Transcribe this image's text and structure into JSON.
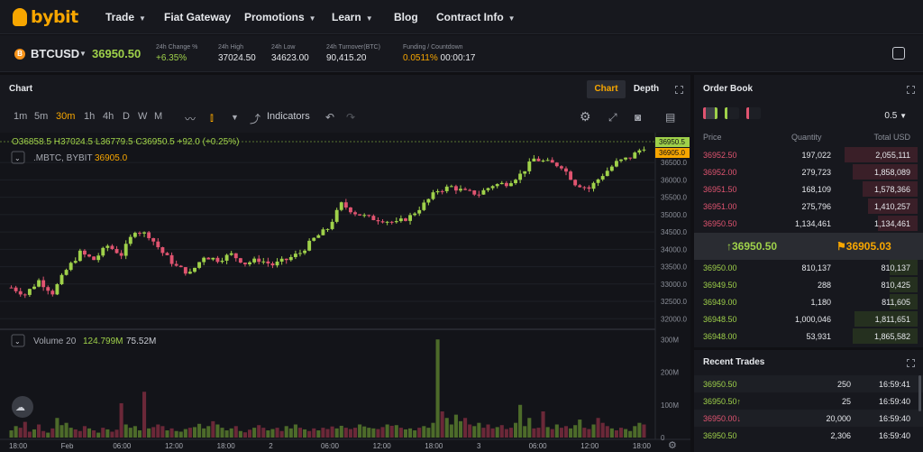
{
  "nav": {
    "logo": "bybit",
    "items": [
      {
        "label": "Trade",
        "caret": true
      },
      {
        "label": "Fiat Gateway",
        "caret": false
      },
      {
        "label": "Promotions",
        "caret": true
      },
      {
        "label": "Learn",
        "caret": true
      },
      {
        "label": "Blog",
        "caret": false
      },
      {
        "label": "Contract Info",
        "caret": true
      }
    ]
  },
  "ticker": {
    "coin_glyph": "B",
    "symbol": "BTCUSD",
    "last_price": "36950.50",
    "stats": [
      {
        "label": "24h Change %",
        "value": "+6.35%",
        "tone": "green"
      },
      {
        "label": "24h High",
        "value": "37024.50",
        "tone": "white"
      },
      {
        "label": "24h Low",
        "value": "34623.00",
        "tone": "white"
      },
      {
        "label": "24h Turnover(BTC)",
        "value": "90,415.20",
        "tone": "white"
      },
      {
        "label": "Funding  / Countdown",
        "value": "0.0511%",
        "value2": "00:00:17",
        "tone": "orange"
      }
    ]
  },
  "chart_panel": {
    "title": "Chart",
    "tab_chart": "Chart",
    "tab_depth": "Depth",
    "timeframes": [
      "1m",
      "5m",
      "30m",
      "1h",
      "4h",
      "D",
      "W",
      "M"
    ],
    "active_timeframe": "30m",
    "indicators_label": "Indicators"
  },
  "chart_data": {
    "type": "candlestick",
    "ohlc_legend": {
      "o": "O36858.5",
      "h": "H37024.5",
      "l": "L36779.5",
      "c": "C36950.5",
      "change": "+92.0 (+0.25%)"
    },
    "series_label": ".MBTC, BYBIT",
    "series_value": "36905.0",
    "volume_label": "Volume 20",
    "volume_v1": "124.799M",
    "volume_v2": "75.52M",
    "price_axis": [
      "36500.0",
      "36000.0",
      "35500.0",
      "35000.0",
      "34500.0",
      "34000.0",
      "33500.0",
      "33000.0",
      "32500.0",
      "32000.0"
    ],
    "price_tags": {
      "last": "36950.5",
      "index": "36905.0"
    },
    "volume_axis": [
      "300M",
      "200M",
      "100M",
      "0"
    ],
    "time_axis": [
      "18:00",
      "Feb",
      "06:00",
      "12:00",
      "18:00",
      "2",
      "06:00",
      "12:00",
      "18:00",
      "3",
      "06:00",
      "12:00",
      "18:00"
    ],
    "ylim": [
      31800,
      37100
    ],
    "price_trend": [
      [
        0,
        32900
      ],
      [
        3,
        32700
      ],
      [
        6,
        33100
      ],
      [
        9,
        32750
      ],
      [
        12,
        33400
      ],
      [
        15,
        33900
      ],
      [
        18,
        33700
      ],
      [
        21,
        34100
      ],
      [
        24,
        33850
      ],
      [
        27,
        34550
      ],
      [
        30,
        34400
      ],
      [
        33,
        33900
      ],
      [
        36,
        33500
      ],
      [
        39,
        33300
      ],
      [
        42,
        33800
      ],
      [
        45,
        33700
      ],
      [
        48,
        33850
      ],
      [
        51,
        33600
      ],
      [
        54,
        33700
      ],
      [
        57,
        33550
      ],
      [
        60,
        33700
      ],
      [
        63,
        33900
      ],
      [
        66,
        34300
      ],
      [
        69,
        34600
      ],
      [
        72,
        35300
      ],
      [
        75,
        35050
      ],
      [
        78,
        34900
      ],
      [
        81,
        34850
      ],
      [
        84,
        34750
      ],
      [
        87,
        34950
      ],
      [
        90,
        35300
      ],
      [
        93,
        35700
      ],
      [
        96,
        35800
      ],
      [
        99,
        35650
      ],
      [
        102,
        35600
      ],
      [
        105,
        35850
      ],
      [
        108,
        35900
      ],
      [
        111,
        36150
      ],
      [
        114,
        36600
      ],
      [
        117,
        36500
      ],
      [
        120,
        36400
      ],
      [
        123,
        35900
      ],
      [
        126,
        35750
      ],
      [
        129,
        36150
      ],
      [
        132,
        36500
      ],
      [
        135,
        36650
      ],
      [
        138,
        36950
      ]
    ],
    "volume_m": [
      22,
      35,
      30,
      48,
      18,
      25,
      40,
      20,
      15,
      28,
      60,
      38,
      45,
      30,
      25,
      20,
      35,
      28,
      22,
      15,
      30,
      25,
      18,
      24,
      105,
      40,
      30,
      35,
      22,
      140,
      28,
      32,
      40,
      35,
      22,
      28,
      20,
      18,
      26,
      30,
      32,
      42,
      28,
      35,
      50,
      40,
      30,
      22,
      28,
      35,
      20,
      16,
      24,
      30,
      38,
      30,
      22,
      26,
      30,
      20,
      35,
      28,
      40,
      30,
      25,
      20,
      28,
      22,
      30,
      26,
      34,
      28,
      36,
      30,
      26,
      30,
      40,
      34,
      30,
      28,
      26,
      32,
      40,
      36,
      38,
      30,
      25,
      28,
      22,
      30,
      35,
      30,
      45,
      300,
      80,
      60,
      40,
      70,
      50,
      60,
      40,
      35,
      45,
      30,
      40,
      28,
      32,
      38,
      26,
      30,
      45,
      100,
      35,
      60,
      28,
      30,
      80,
      32,
      26,
      40,
      30,
      35,
      28,
      38,
      55,
      30,
      26,
      40,
      60,
      45,
      35,
      28,
      22,
      30,
      26,
      20,
      35,
      45,
      40
    ]
  },
  "orderbook": {
    "title": "Order Book",
    "precision": "0.5",
    "headers": {
      "price": "Price",
      "quantity": "Quantity",
      "total": "Total USD"
    },
    "asks": [
      {
        "price": "36952.50",
        "size": "197,022",
        "total": "2,055,111",
        "depth": 0.9
      },
      {
        "price": "36952.00",
        "size": "279,723",
        "total": "1,858,089",
        "depth": 0.8
      },
      {
        "price": "36951.50",
        "size": "168,109",
        "total": "1,578,366",
        "depth": 0.68
      },
      {
        "price": "36951.00",
        "size": "275,796",
        "total": "1,410,257",
        "depth": 0.61
      },
      {
        "price": "36950.50",
        "size": "1,134,461",
        "total": "1,134,461",
        "depth": 0.49
      }
    ],
    "last_price": "36950.50",
    "mark_price": "36905.03",
    "bids": [
      {
        "price": "36950.00",
        "size": "810,137",
        "total": "810,137",
        "depth": 0.35
      },
      {
        "price": "36949.50",
        "size": "288",
        "total": "810,425",
        "depth": 0.35
      },
      {
        "price": "36949.00",
        "size": "1,180",
        "total": "811,605",
        "depth": 0.35
      },
      {
        "price": "36948.50",
        "size": "1,000,046",
        "total": "1,811,651",
        "depth": 0.78
      },
      {
        "price": "36948.00",
        "size": "53,931",
        "total": "1,865,582",
        "depth": 0.8
      }
    ]
  },
  "recent_trades": {
    "title": "Recent Trades",
    "rows": [
      {
        "price": "36950.50",
        "qty": "250",
        "time": "16:59:41",
        "dir": "up",
        "arrow": ""
      },
      {
        "price": "36950.50",
        "qty": "25",
        "time": "16:59:40",
        "dir": "up",
        "arrow": "↑"
      },
      {
        "price": "36950.00",
        "qty": "20,000",
        "time": "16:59:40",
        "dir": "down",
        "arrow": "↓"
      },
      {
        "price": "36950.50",
        "qty": "2,306",
        "time": "16:59:40",
        "dir": "up",
        "arrow": ""
      }
    ]
  },
  "colors": {
    "up": "#9fd14a",
    "down": "#e05470",
    "accent": "#f7a600"
  }
}
